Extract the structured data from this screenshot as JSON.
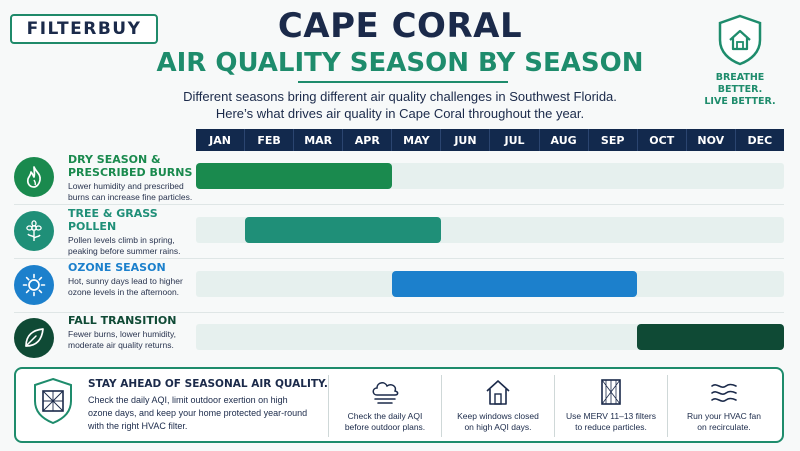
{
  "brand": {
    "logo_text": "FILTERBUY",
    "tagline": "BREATHE BETTER.\nLIVE BETTER."
  },
  "header": {
    "title": "CAPE CORAL",
    "subtitle": "AIR QUALITY SEASON BY SEASON",
    "intro_line1": "Different seasons bring different air quality challenges in Southwest Florida.",
    "intro_line2": "Here’s what drives air quality in Cape Coral throughout the year."
  },
  "months": [
    "JAN",
    "FEB",
    "MAR",
    "APR",
    "MAY",
    "JUN",
    "JUL",
    "AUG",
    "SEP",
    "OCT",
    "NOV",
    "DEC"
  ],
  "colors": {
    "navy": "#12294d",
    "dry_season": "#1a8a4e",
    "pollen": "#1f8f78",
    "ozone": "#1c80cc",
    "fall": "#0f4a35",
    "track": "#e6f0ee"
  },
  "seasons": [
    {
      "title_line1": "DRY SEASON &",
      "title_line2": "PRESCRIBED BURNS",
      "desc_line1": "Lower humidity and prescribed",
      "desc_line2": "burns can increase fine particles.",
      "icon": "flame-icon",
      "start_month": 1,
      "end_month": 4,
      "color": "#1a8a4e"
    },
    {
      "title_line1": "TREE & GRASS POLLEN",
      "title_line2": "",
      "desc_line1": "Pollen levels climb in spring,",
      "desc_line2": "peaking before summer rains.",
      "icon": "flower-icon",
      "start_month": 2,
      "end_month": 5,
      "color": "#1f8f78"
    },
    {
      "title_line1": "OZONE SEASON",
      "title_line2": "",
      "desc_line1": "Hot, sunny days lead to higher",
      "desc_line2": "ozone levels in the afternoon.",
      "icon": "sun-icon",
      "start_month": 5,
      "end_month": 9,
      "color": "#1c80cc"
    },
    {
      "title_line1": "FALL TRANSITION",
      "title_line2": "",
      "desc_line1": "Fewer burns, lower humidity,",
      "desc_line2": "moderate air quality returns.",
      "icon": "leaf-icon",
      "start_month": 10,
      "end_month": 12,
      "color": "#0f4a35"
    }
  ],
  "panel": {
    "heading": "STAY AHEAD OF SEASONAL AIR QUALITY.",
    "body_line1": "Check the daily AQI, limit outdoor exertion on high",
    "body_line2": "ozone days, and keep your home protected year-round",
    "body_line3": "with the right HVAC filter.",
    "tips": [
      {
        "icon": "aqi-cloud-icon",
        "line1": "Check the daily AQI",
        "line2": "before outdoor plans."
      },
      {
        "icon": "house-icon",
        "line1": "Keep windows closed",
        "line2": "on high AQI days."
      },
      {
        "icon": "filter-icon",
        "line1": "Use MERV 11–13 filters",
        "line2": "to reduce particles."
      },
      {
        "icon": "airflow-icon",
        "line1": "Run your HVAC fan",
        "line2": "on recirculate."
      }
    ]
  }
}
